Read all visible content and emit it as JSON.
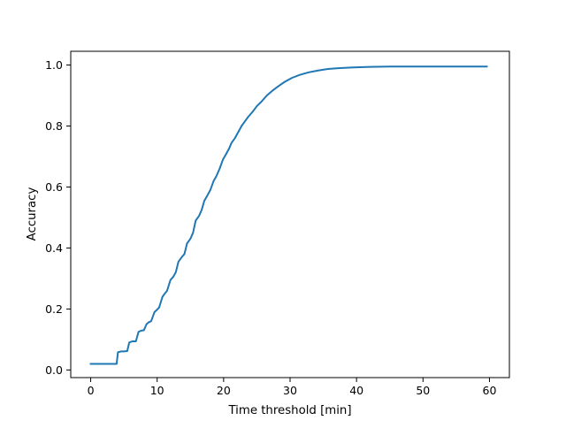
{
  "chart_data": {
    "type": "line",
    "title": "",
    "xlabel": "Time threshold [min]",
    "ylabel": "Accuracy",
    "xlim": [
      -3,
      63
    ],
    "ylim": [
      -0.025,
      1.045
    ],
    "xticks": [
      0,
      10,
      20,
      30,
      40,
      50,
      60
    ],
    "xtick_labels": [
      "0",
      "10",
      "20",
      "30",
      "40",
      "50",
      "60"
    ],
    "yticks": [
      0.0,
      0.2,
      0.4,
      0.6,
      0.8,
      1.0
    ],
    "ytick_labels": [
      "0.0",
      "0.2",
      "0.4",
      "0.6",
      "0.8",
      "1.0"
    ],
    "grid": false,
    "legend": "none",
    "series": [
      {
        "color": "#1f77b4",
        "x": [
          0,
          1,
          2,
          3,
          3.9,
          4.1,
          4.6,
          5.0,
          5.5,
          5.8,
          6.3,
          6.8,
          7.2,
          7.6,
          8.0,
          8.4,
          8.7,
          9.1,
          9.6,
          10.0,
          10.3,
          10.8,
          11.2,
          11.5,
          12.0,
          12.4,
          12.8,
          13.2,
          13.7,
          14.1,
          14.5,
          15.0,
          15.4,
          15.8,
          16.3,
          16.7,
          17.1,
          17.5,
          18.0,
          18.5,
          18.9,
          19.4,
          19.9,
          20.3,
          20.8,
          21.2,
          21.7,
          22.2,
          22.7,
          23.2,
          23.7,
          24.3,
          25.0,
          25.7,
          26.5,
          27.3,
          28.2,
          29.2,
          30.3,
          31.5,
          32.8,
          34.2,
          35.7,
          37.5,
          39.5,
          42.0,
          45.0,
          50.0,
          55.0,
          59.6
        ],
        "y": [
          0.02,
          0.02,
          0.02,
          0.02,
          0.02,
          0.058,
          0.061,
          0.061,
          0.062,
          0.09,
          0.094,
          0.094,
          0.125,
          0.129,
          0.13,
          0.15,
          0.156,
          0.16,
          0.19,
          0.198,
          0.205,
          0.24,
          0.252,
          0.26,
          0.295,
          0.305,
          0.32,
          0.355,
          0.37,
          0.38,
          0.415,
          0.43,
          0.45,
          0.49,
          0.505,
          0.525,
          0.555,
          0.57,
          0.59,
          0.62,
          0.635,
          0.66,
          0.69,
          0.705,
          0.725,
          0.745,
          0.76,
          0.78,
          0.8,
          0.815,
          0.83,
          0.845,
          0.865,
          0.88,
          0.9,
          0.915,
          0.93,
          0.945,
          0.958,
          0.968,
          0.976,
          0.982,
          0.987,
          0.99,
          0.992,
          0.994,
          0.995,
          0.995,
          0.995,
          0.995
        ]
      }
    ]
  }
}
